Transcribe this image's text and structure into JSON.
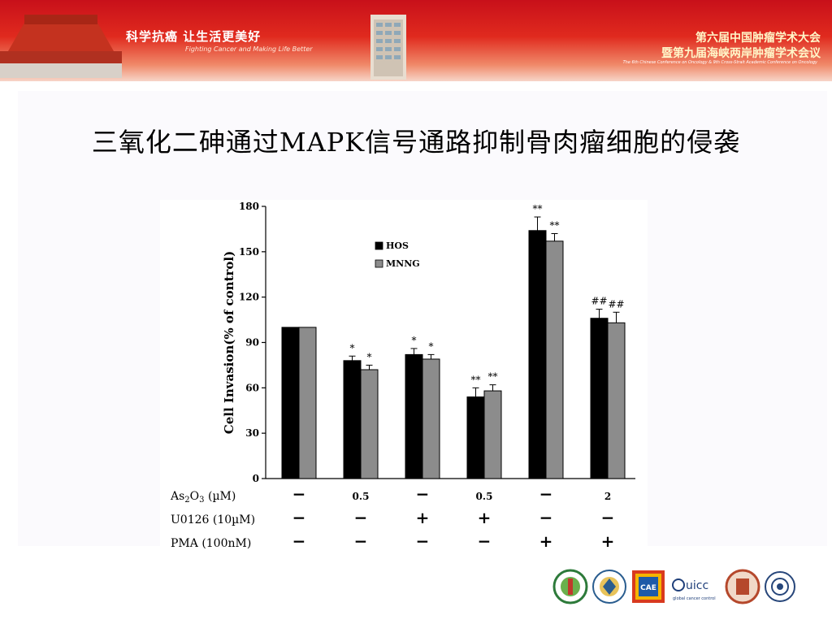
{
  "banner": {
    "slogan_cn": "科学抗癌 让生活更美好",
    "slogan_en": "Fighting Cancer and Making Life Better",
    "conference_line1": "第六届中国肿瘤学术大会",
    "conference_line2": "暨第九届海峡两岸肿瘤学术会议",
    "conference_en": "The 6th Chinese Conference on Oncology & 9th Cross-Strait Academic Conference on Oncology"
  },
  "slide": {
    "title": "三氧化二砷通过MAPK信号通路抑制骨肉瘤细胞的侵袭"
  },
  "chart_data": {
    "type": "bar",
    "ylabel": "Cell Invasion(% of control)",
    "ylim": [
      0,
      180
    ],
    "yticks": [
      0,
      30,
      60,
      90,
      120,
      150,
      180
    ],
    "grid": false,
    "legend_position": "top-left",
    "series": [
      {
        "name": "HOS",
        "color": "#000000",
        "values": [
          100,
          78,
          82,
          54,
          164,
          106
        ],
        "errors": [
          0,
          3,
          4,
          6,
          9,
          6
        ],
        "annotations": [
          "",
          "*",
          "*",
          "**",
          "**",
          "##"
        ]
      },
      {
        "name": "MNNG",
        "color": "#8c8c8c",
        "values": [
          100,
          72,
          79,
          58,
          157,
          103
        ],
        "errors": [
          0,
          3,
          3,
          4,
          5,
          7
        ],
        "annotations": [
          "",
          "*",
          "*",
          "**",
          "**",
          "##"
        ]
      }
    ],
    "conditions": [
      {
        "label_main": "As",
        "sub1": "2",
        "mid": "O",
        "sub2": "3",
        "unit": " (µM)",
        "values": [
          "−",
          "0.5",
          "−",
          "0.5",
          "−",
          "2"
        ]
      },
      {
        "label": "U0126 (10µM)",
        "values": [
          "−",
          "−",
          "+",
          "+",
          "−",
          "−"
        ]
      },
      {
        "label": "PMA  (100nM)",
        "values": [
          "−",
          "−",
          "−",
          "−",
          "+",
          "+"
        ]
      }
    ]
  },
  "logos": [
    "hospital-logo",
    "association-logo",
    "cae-logo",
    "uicc-logo",
    "university-logo",
    "society-logo"
  ],
  "logo_text": {
    "uicc": "uicc",
    "uicc_sub": "global cancer control",
    "cae": "CAE"
  }
}
